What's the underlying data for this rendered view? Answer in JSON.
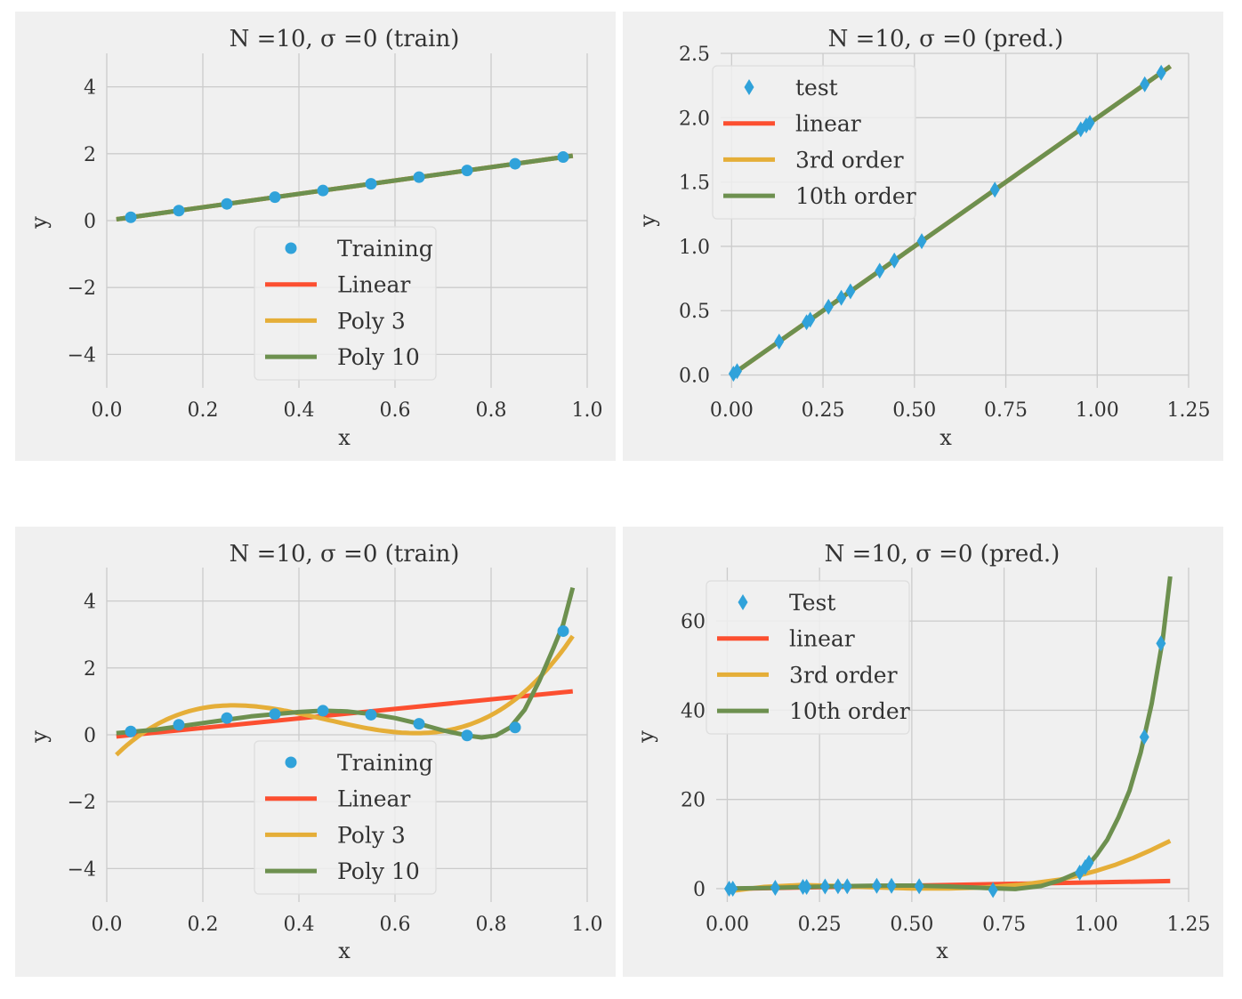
{
  "colors": {
    "background": "#ffffff",
    "axes_face": "#f0f0f0",
    "grid": "#cbcbcb",
    "points": "#30a2da",
    "linear": "#fc4f30",
    "poly3": "#e5ae38",
    "poly10": "#6d904f"
  },
  "chart_data": [
    {
      "type": "line",
      "title": "N =10, σ =0 (train)",
      "xlabel": "x",
      "ylabel": "y",
      "xlim": [
        0.0,
        1.0
      ],
      "ylim": [
        -5,
        5
      ],
      "xticks": [
        0.0,
        0.2,
        0.4,
        0.6,
        0.8,
        1.0
      ],
      "xtick_labels": [
        "0.0",
        "0.2",
        "0.4",
        "0.6",
        "0.8",
        "1.0"
      ],
      "yticks": [
        -4,
        -2,
        0,
        2,
        4
      ],
      "ytick_labels": [
        "−4",
        "−2",
        "0",
        "2",
        "4"
      ],
      "legend": {
        "position": "lower-center",
        "entries": [
          "Training",
          "Linear",
          "Poly 3",
          "Poly 10"
        ]
      },
      "points": {
        "name": "Training",
        "marker": "circle",
        "x": [
          0.05,
          0.15,
          0.25,
          0.35,
          0.45,
          0.55,
          0.65,
          0.75,
          0.85,
          0.95
        ],
        "y": [
          0.1,
          0.3,
          0.5,
          0.7,
          0.9,
          1.1,
          1.3,
          1.5,
          1.7,
          1.9
        ]
      },
      "series": [
        {
          "name": "Linear",
          "kind": "linear",
          "x": [
            0.02,
            0.97
          ],
          "y": [
            0.04,
            1.94
          ]
        },
        {
          "name": "Poly 3",
          "kind": "linear",
          "x": [
            0.02,
            0.97
          ],
          "y": [
            0.04,
            1.94
          ]
        },
        {
          "name": "Poly 10",
          "kind": "linear",
          "x": [
            0.02,
            0.97
          ],
          "y": [
            0.04,
            1.94
          ]
        }
      ]
    },
    {
      "type": "line",
      "title": "N =10, σ =0 (pred.)",
      "xlabel": "x",
      "ylabel": "y",
      "xlim": [
        -0.03,
        1.25
      ],
      "ylim": [
        -0.1,
        2.5
      ],
      "xticks": [
        0.0,
        0.25,
        0.5,
        0.75,
        1.0,
        1.25
      ],
      "xtick_labels": [
        "0.00",
        "0.25",
        "0.50",
        "0.75",
        "1.00",
        "1.25"
      ],
      "yticks": [
        0.0,
        0.5,
        1.0,
        1.5,
        2.0,
        2.5
      ],
      "ytick_labels": [
        "0.0",
        "0.5",
        "1.0",
        "1.5",
        "2.0",
        "2.5"
      ],
      "legend": {
        "position": "upper-left",
        "entries": [
          "test",
          "linear",
          "3rd order",
          "10th order"
        ]
      },
      "points": {
        "name": "test",
        "marker": "diamond",
        "x": [
          0.005,
          0.015,
          0.13,
          0.205,
          0.215,
          0.265,
          0.3,
          0.325,
          0.405,
          0.445,
          0.52,
          0.72,
          0.955,
          0.97,
          0.98,
          1.13,
          1.175
        ],
        "y": [
          0.01,
          0.03,
          0.26,
          0.41,
          0.43,
          0.53,
          0.6,
          0.65,
          0.81,
          0.89,
          1.04,
          1.44,
          1.91,
          1.94,
          1.96,
          2.26,
          2.35
        ]
      },
      "series": [
        {
          "name": "linear",
          "kind": "linear",
          "x": [
            0.0,
            1.2
          ],
          "y": [
            0.0,
            2.4
          ]
        },
        {
          "name": "3rd order",
          "kind": "linear",
          "x": [
            0.0,
            1.2
          ],
          "y": [
            0.0,
            2.4
          ]
        },
        {
          "name": "10th order",
          "kind": "linear",
          "x": [
            0.0,
            1.2
          ],
          "y": [
            0.0,
            2.4
          ]
        }
      ]
    },
    {
      "type": "line",
      "title": "N =10, σ =0 (train)",
      "xlabel": "x",
      "ylabel": "y",
      "xlim": [
        0.0,
        1.0
      ],
      "ylim": [
        -5,
        5
      ],
      "xticks": [
        0.0,
        0.2,
        0.4,
        0.6,
        0.8,
        1.0
      ],
      "xtick_labels": [
        "0.0",
        "0.2",
        "0.4",
        "0.6",
        "0.8",
        "1.0"
      ],
      "yticks": [
        -4,
        -2,
        0,
        2,
        4
      ],
      "ytick_labels": [
        "−4",
        "−2",
        "0",
        "2",
        "4"
      ],
      "legend": {
        "position": "lower-center",
        "entries": [
          "Training",
          "Linear",
          "Poly 3",
          "Poly 10"
        ]
      },
      "points": {
        "name": "Training",
        "marker": "circle",
        "x": [
          0.05,
          0.15,
          0.25,
          0.35,
          0.45,
          0.55,
          0.65,
          0.75,
          0.85,
          0.95
        ],
        "y": [
          0.1,
          0.3,
          0.5,
          0.62,
          0.72,
          0.6,
          0.33,
          -0.02,
          0.22,
          3.1
        ]
      },
      "series": [
        {
          "name": "Linear",
          "kind": "linear",
          "x": [
            0.02,
            0.97
          ],
          "y": [
            -0.05,
            1.3
          ]
        },
        {
          "name": "Poly 3",
          "kind": "cubic_interp",
          "x": [
            0.02,
            0.2,
            0.65,
            0.97
          ],
          "y": [
            -0.6,
            0.8,
            0.05,
            2.95
          ]
        },
        {
          "name": "Poly 10",
          "kind": "polyline",
          "x": [
            0.02,
            0.1,
            0.2,
            0.3,
            0.4,
            0.45,
            0.5,
            0.55,
            0.6,
            0.65,
            0.7,
            0.75,
            0.78,
            0.81,
            0.84,
            0.87,
            0.9,
            0.93,
            0.95,
            0.97
          ],
          "y": [
            0.05,
            0.15,
            0.35,
            0.55,
            0.68,
            0.72,
            0.7,
            0.62,
            0.5,
            0.33,
            0.13,
            -0.02,
            -0.08,
            -0.02,
            0.22,
            0.75,
            1.6,
            2.6,
            3.3,
            4.4
          ]
        }
      ]
    },
    {
      "type": "line",
      "title": "N =10, σ =0 (pred.)",
      "xlabel": "x",
      "ylabel": "y",
      "xlim": [
        -0.03,
        1.25
      ],
      "ylim": [
        -3,
        72
      ],
      "xticks": [
        0.0,
        0.25,
        0.5,
        0.75,
        1.0,
        1.25
      ],
      "xtick_labels": [
        "0.00",
        "0.25",
        "0.50",
        "0.75",
        "1.00",
        "1.25"
      ],
      "yticks": [
        0,
        20,
        40,
        60
      ],
      "ytick_labels": [
        "0",
        "20",
        "40",
        "60"
      ],
      "legend": {
        "position": "upper-left",
        "entries": [
          "Test",
          "linear",
          "3rd order",
          "10th order"
        ]
      },
      "points": {
        "name": "Test",
        "marker": "diamond",
        "x": [
          0.005,
          0.015,
          0.13,
          0.205,
          0.215,
          0.265,
          0.3,
          0.325,
          0.405,
          0.445,
          0.52,
          0.72,
          0.955,
          0.97,
          0.98,
          1.13,
          1.175
        ],
        "y": [
          0.0,
          0.0,
          0.2,
          0.4,
          0.4,
          0.5,
          0.55,
          0.55,
          0.65,
          0.65,
          0.55,
          -0.3,
          3.6,
          4.8,
          5.8,
          34.0,
          55.0
        ]
      },
      "series": [
        {
          "name": "linear",
          "kind": "linear",
          "x": [
            0.0,
            1.2
          ],
          "y": [
            -0.05,
            1.7
          ]
        },
        {
          "name": "3rd order",
          "kind": "polyline",
          "x": [
            0.0,
            0.1,
            0.2,
            0.3,
            0.4,
            0.5,
            0.6,
            0.7,
            0.8,
            0.9,
            0.95,
            1.0,
            1.05,
            1.1,
            1.15,
            1.2
          ],
          "y": [
            -0.6,
            0.4,
            0.8,
            0.6,
            0.3,
            0.05,
            0.05,
            0.3,
            0.9,
            2.0,
            2.9,
            4.0,
            5.3,
            6.9,
            8.7,
            10.7
          ]
        },
        {
          "name": "10th order",
          "kind": "polyline",
          "x": [
            0.0,
            0.1,
            0.2,
            0.3,
            0.4,
            0.5,
            0.6,
            0.7,
            0.78,
            0.85,
            0.9,
            0.95,
            0.98,
            1.0,
            1.03,
            1.06,
            1.09,
            1.12,
            1.15,
            1.18,
            1.2
          ],
          "y": [
            0.05,
            0.15,
            0.35,
            0.55,
            0.68,
            0.7,
            0.5,
            0.13,
            -0.08,
            0.6,
            1.8,
            3.6,
            5.5,
            7.5,
            11.0,
            16.0,
            22.0,
            30.5,
            41.5,
            56.0,
            70.0
          ]
        }
      ]
    }
  ]
}
